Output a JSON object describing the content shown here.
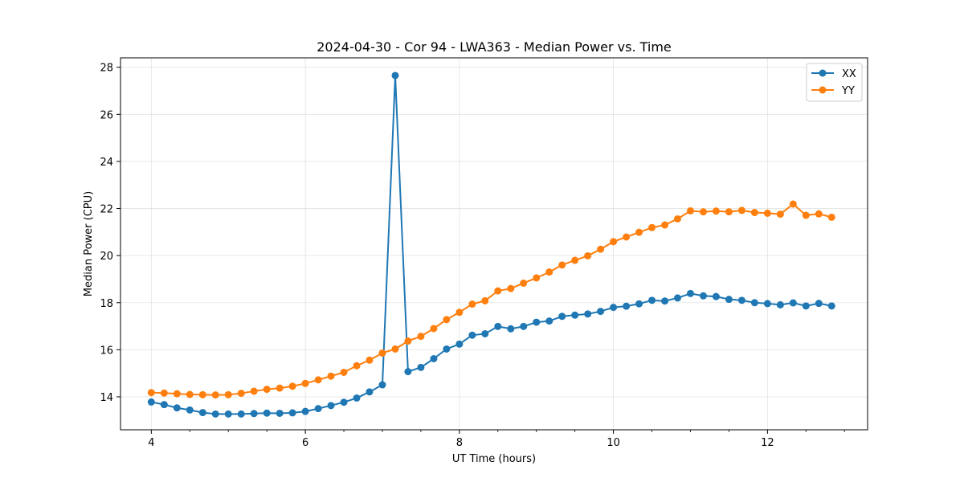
{
  "chart_data": {
    "type": "line",
    "title": "2024-04-30 - Cor 94 - LWA363 - Median Power vs. Time",
    "xlabel": "UT Time (hours)",
    "ylabel": "Median Power (CPU)",
    "xlim": [
      3.6,
      13.3
    ],
    "ylim": [
      12.6,
      28.4
    ],
    "xticks": [
      4,
      6,
      8,
      10,
      12
    ],
    "yticks": [
      14,
      16,
      18,
      20,
      22,
      24,
      26,
      28
    ],
    "grid": true,
    "legend_position": "top-right",
    "x": [
      4.0,
      4.167,
      4.333,
      4.5,
      4.667,
      4.833,
      5.0,
      5.167,
      5.333,
      5.5,
      5.667,
      5.833,
      6.0,
      6.167,
      6.333,
      6.5,
      6.667,
      6.833,
      7.0,
      7.167,
      7.333,
      7.5,
      7.667,
      7.833,
      8.0,
      8.167,
      8.333,
      8.5,
      8.667,
      8.833,
      9.0,
      9.167,
      9.333,
      9.5,
      9.667,
      9.833,
      10.0,
      10.167,
      10.333,
      10.5,
      10.667,
      10.833,
      11.0,
      11.167,
      11.333,
      11.5,
      11.667,
      11.833,
      12.0,
      12.167,
      12.333,
      12.5,
      12.667,
      12.833
    ],
    "series": [
      {
        "name": "XX",
        "color": "#1f77b4",
        "values": [
          13.78,
          13.67,
          13.53,
          13.44,
          13.33,
          13.27,
          13.27,
          13.27,
          13.29,
          13.31,
          13.3,
          13.32,
          13.38,
          13.5,
          13.63,
          13.77,
          13.95,
          14.21,
          14.51,
          27.65,
          15.07,
          15.25,
          15.62,
          16.03,
          16.24,
          16.62,
          16.68,
          16.99,
          16.89,
          16.99,
          17.17,
          17.22,
          17.42,
          17.47,
          17.52,
          17.63,
          17.8,
          17.85,
          17.95,
          18.1,
          18.07,
          18.2,
          18.39,
          18.29,
          18.26,
          18.14,
          18.1,
          18.0,
          17.96,
          17.91,
          17.99,
          17.86,
          17.97,
          17.86
        ]
      },
      {
        "name": "YY",
        "color": "#ff7f0e",
        "values": [
          14.18,
          14.16,
          14.13,
          14.1,
          14.09,
          14.08,
          14.09,
          14.15,
          14.24,
          14.32,
          14.37,
          14.45,
          14.57,
          14.72,
          14.88,
          15.04,
          15.32,
          15.56,
          15.86,
          16.03,
          16.37,
          16.57,
          16.9,
          17.28,
          17.59,
          17.94,
          18.08,
          18.5,
          18.6,
          18.83,
          19.05,
          19.3,
          19.6,
          19.8,
          19.99,
          20.27,
          20.59,
          20.79,
          20.99,
          21.19,
          21.3,
          21.56,
          21.9,
          21.86,
          21.89,
          21.86,
          21.92,
          21.83,
          21.8,
          21.76,
          22.19,
          21.71,
          21.77,
          21.63
        ]
      }
    ]
  }
}
